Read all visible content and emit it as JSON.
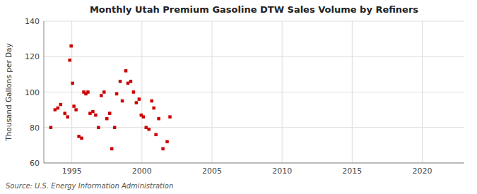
{
  "chart_data": {
    "type": "scatter",
    "title": "Monthly Utah Premium Gasoline DTW Sales Volume by Refiners",
    "ylabel": "Thousand Gallons per Day",
    "annotations": [
      "Source: U.S. Energy Information Administration"
    ],
    "color": "#cc0000",
    "marker": "square",
    "grid": true,
    "xlim": [
      1993.0,
      2023.0
    ],
    "ylim": [
      60,
      140
    ],
    "xticks": [
      1995,
      2000,
      2005,
      2010,
      2015,
      2020
    ],
    "yticks": [
      60,
      80,
      100,
      120,
      140
    ],
    "x": [
      1993.5,
      1993.8,
      1994.0,
      1994.2,
      1994.5,
      1994.7,
      1994.85,
      1994.95,
      1995.05,
      1995.15,
      1995.3,
      1995.5,
      1995.7,
      1995.85,
      1996.0,
      1996.15,
      1996.3,
      1996.5,
      1996.7,
      1996.9,
      1997.1,
      1997.3,
      1997.5,
      1997.7,
      1997.85,
      1998.05,
      1998.2,
      1998.45,
      1998.6,
      1998.85,
      1999.0,
      1999.2,
      1999.4,
      1999.6,
      1999.8,
      1999.95,
      2000.1,
      2000.3,
      2000.5,
      2000.7,
      2000.85,
      2001.0,
      2001.2,
      2001.5,
      2001.8,
      2002.0
    ],
    "values": [
      80,
      90,
      91,
      93,
      88,
      86,
      118,
      126,
      105,
      92,
      90,
      75,
      74,
      100,
      99,
      100,
      88,
      89,
      87,
      80,
      98,
      100,
      85,
      88,
      68,
      80,
      99,
      106,
      95,
      112,
      105,
      106,
      100,
      94,
      96,
      87,
      86,
      80,
      79,
      95,
      91,
      76,
      85,
      68,
      72,
      86
    ]
  }
}
